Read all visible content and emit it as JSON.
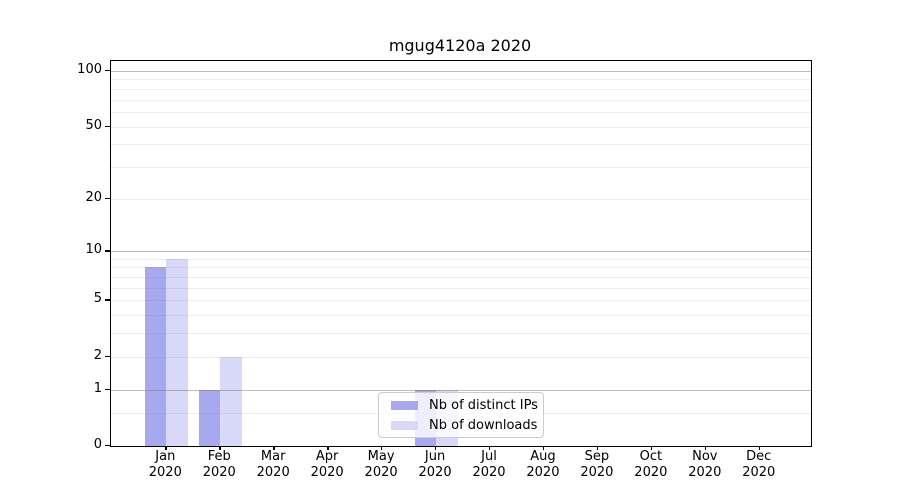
{
  "chart_data": {
    "type": "bar",
    "title": "mgug4120a 2020",
    "categories": [
      "Jan",
      "Feb",
      "Mar",
      "Apr",
      "May",
      "Jun",
      "Jul",
      "Aug",
      "Sep",
      "Oct",
      "Nov",
      "Dec"
    ],
    "year_label": "2020",
    "series": [
      {
        "name": "Nb of distinct IPs",
        "color": "#a8a8f0",
        "values": [
          8,
          1,
          0,
          0,
          0,
          1,
          0,
          0,
          0,
          0,
          0,
          0
        ]
      },
      {
        "name": "Nb of downloads",
        "color": "#d8d8f8",
        "values": [
          9,
          2,
          0,
          0,
          0,
          1,
          0,
          0,
          0,
          0,
          0,
          0
        ]
      }
    ],
    "yticks": [
      0,
      1,
      2,
      5,
      10,
      20,
      50,
      100
    ],
    "major_grid_values": [
      1,
      10,
      100
    ],
    "minor_grid_values": [
      0.5,
      3,
      4,
      6,
      7,
      8,
      9,
      30,
      40,
      60,
      70,
      80,
      90
    ],
    "scale": "log10(value+1)",
    "ylim": [
      0,
      113
    ],
    "grid": "both",
    "legend_position": "lower center"
  }
}
